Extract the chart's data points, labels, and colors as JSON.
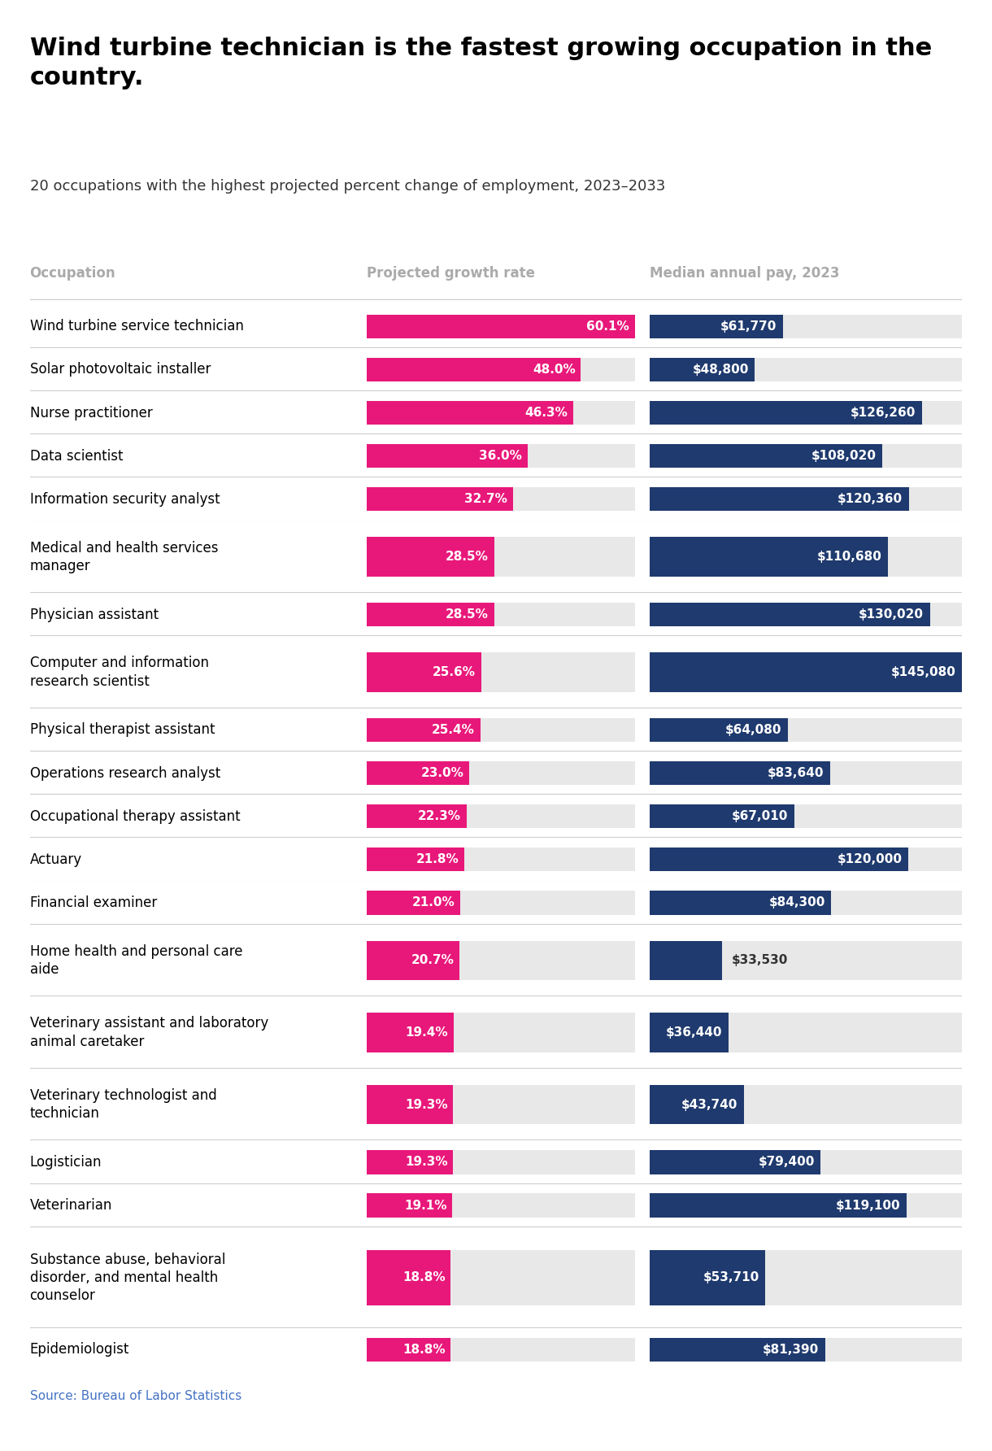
{
  "title": "Wind turbine technician is the fastest growing occupation in the\ncountry.",
  "subtitle": "20 occupations with the highest projected percent change of employment, 2023–2033",
  "col_header_occupation": "Occupation",
  "col_header_growth": "Projected growth rate",
  "col_header_pay": "Median annual pay, 2023",
  "source": "Source: Bureau of Labor Statistics",
  "occupations": [
    {
      "name": "Wind turbine service technician",
      "growth": 60.1,
      "pay": 61770
    },
    {
      "name": "Solar photovoltaic installer",
      "growth": 48.0,
      "pay": 48800
    },
    {
      "name": "Nurse practitioner",
      "growth": 46.3,
      "pay": 126260
    },
    {
      "name": "Data scientist",
      "growth": 36.0,
      "pay": 108020
    },
    {
      "name": "Information security analyst",
      "growth": 32.7,
      "pay": 120360
    },
    {
      "name": "Medical and health services\nmanager",
      "growth": 28.5,
      "pay": 110680
    },
    {
      "name": "Physician assistant",
      "growth": 28.5,
      "pay": 130020
    },
    {
      "name": "Computer and information\nresearch scientist",
      "growth": 25.6,
      "pay": 145080
    },
    {
      "name": "Physical therapist assistant",
      "growth": 25.4,
      "pay": 64080
    },
    {
      "name": "Operations research analyst",
      "growth": 23.0,
      "pay": 83640
    },
    {
      "name": "Occupational therapy assistant",
      "growth": 22.3,
      "pay": 67010
    },
    {
      "name": "Actuary",
      "growth": 21.8,
      "pay": 120000
    },
    {
      "name": "Financial examiner",
      "growth": 21.0,
      "pay": 84300
    },
    {
      "name": "Home health and personal care\naide",
      "growth": 20.7,
      "pay": 33530
    },
    {
      "name": "Veterinary assistant and laboratory\nanimal caretaker",
      "growth": 19.4,
      "pay": 36440
    },
    {
      "name": "Veterinary technologist and\ntechnician",
      "growth": 19.3,
      "pay": 43740
    },
    {
      "name": "Logistician",
      "growth": 19.3,
      "pay": 79400
    },
    {
      "name": "Veterinarian",
      "growth": 19.1,
      "pay": 119100
    },
    {
      "name": "Substance abuse, behavioral\ndisorder, and mental health\ncounselor",
      "growth": 18.8,
      "pay": 53710
    },
    {
      "name": "Epidemiologist",
      "growth": 18.8,
      "pay": 81390
    }
  ],
  "growth_max": 60.1,
  "pay_max": 145080,
  "pink_color": "#E8187A",
  "navy_color": "#1F3A6E",
  "bg_color": "#FFFFFF",
  "bar_bg_color": "#E8E8E8",
  "header_color": "#AAAAAA",
  "title_color": "#000000",
  "subtitle_color": "#333333",
  "source_color": "#4472C4",
  "row_line_color": "#CCCCCC",
  "label_color_white": "#FFFFFF",
  "label_color_dark": "#333333"
}
